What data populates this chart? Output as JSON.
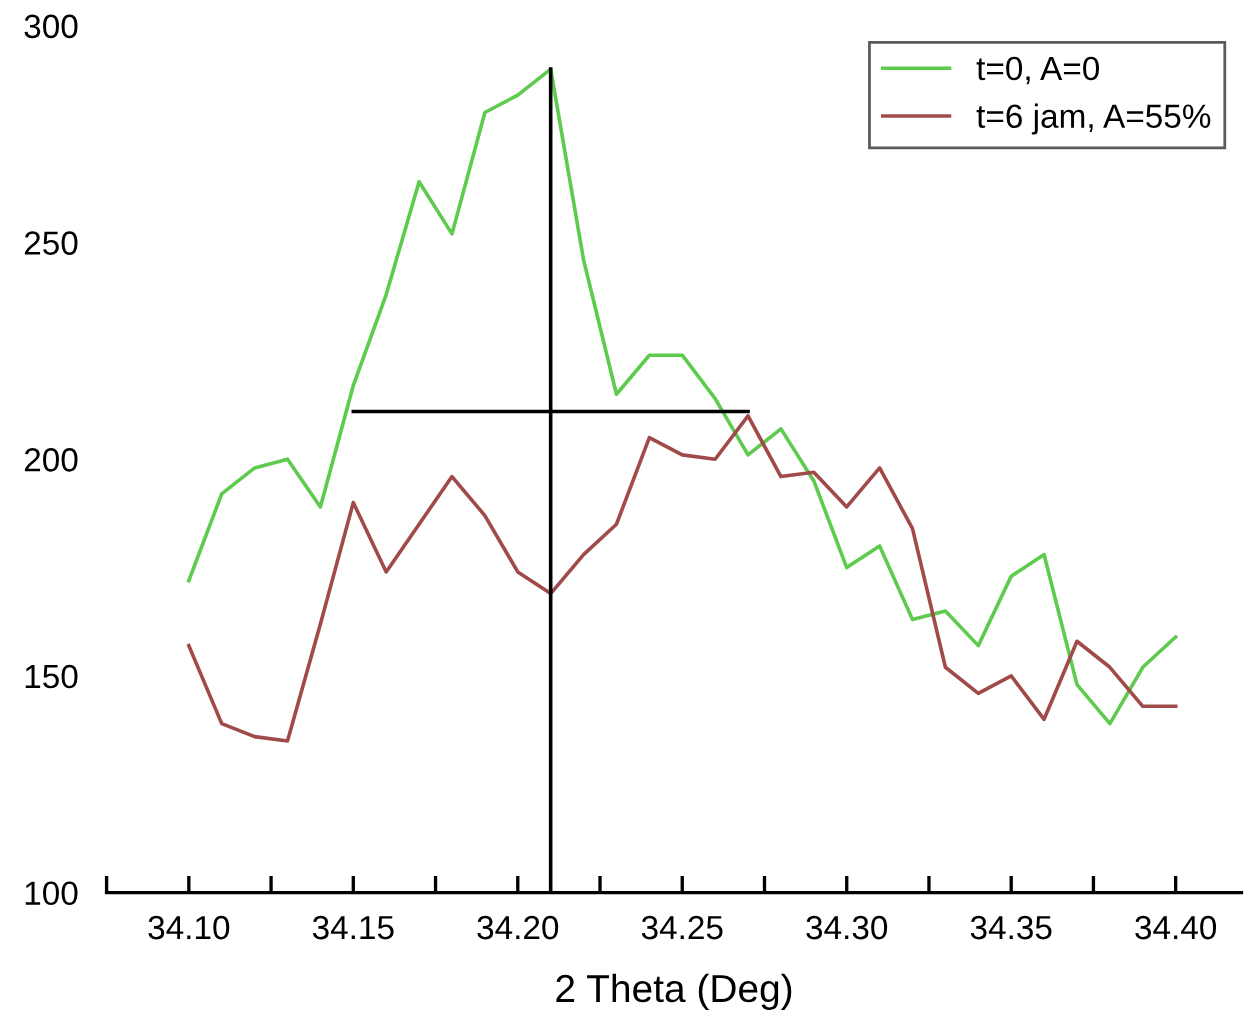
{
  "chart_data": {
    "type": "line",
    "xlabel": "2 Theta (Deg)",
    "xlim": [
      34.075,
      34.42
    ],
    "ylim": [
      100,
      300
    ],
    "xticks": [
      {
        "value": 34.075,
        "label": null
      },
      {
        "value": 34.1,
        "label": "34.10"
      },
      {
        "value": 34.125,
        "label": null
      },
      {
        "value": 34.15,
        "label": "34.15"
      },
      {
        "value": 34.175,
        "label": null
      },
      {
        "value": 34.2,
        "label": "34.20"
      },
      {
        "value": 34.225,
        "label": null
      },
      {
        "value": 34.25,
        "label": "34.25"
      },
      {
        "value": 34.275,
        "label": null
      },
      {
        "value": 34.3,
        "label": "34.30"
      },
      {
        "value": 34.325,
        "label": null
      },
      {
        "value": 34.35,
        "label": "34.35"
      },
      {
        "value": 34.375,
        "label": null
      },
      {
        "value": 34.4,
        "label": "34.40"
      }
    ],
    "yticks": [
      100,
      150,
      200,
      250,
      300
    ],
    "grid": false,
    "legend": "top right",
    "line_style": "solid",
    "marker": "none",
    "x": [
      34.1,
      34.11,
      34.12,
      34.13,
      34.14,
      34.15,
      34.16,
      34.17,
      34.18,
      34.19,
      34.2,
      34.21,
      34.22,
      34.23,
      34.24,
      34.25,
      34.26,
      34.27,
      34.28,
      34.29,
      34.3,
      34.31,
      34.32,
      34.33,
      34.34,
      34.35,
      34.36,
      34.37,
      34.38,
      34.39,
      34.4
    ],
    "series": [
      {
        "name": "t=0, A=0",
        "color": "#5ecb4f",
        "values": [
          172,
          192,
          198,
          200,
          189,
          217,
          238,
          264,
          252,
          280,
          284,
          290,
          246,
          215,
          224,
          224,
          214,
          201,
          207,
          195,
          175,
          180,
          163,
          165,
          157,
          173,
          178,
          148,
          139,
          152,
          159
        ]
      },
      {
        "name": "t=6 jam, A=55%",
        "color": "#a04a4a",
        "values": [
          157,
          139,
          136,
          135,
          162,
          190,
          174,
          185,
          196,
          187,
          174,
          169,
          178,
          185,
          205,
          201,
          200,
          210,
          196,
          197,
          189,
          198,
          184,
          152,
          146,
          150,
          140,
          158,
          152,
          143,
          143
        ]
      },
      {
        "color": "#000000",
        "x": [
          34.21,
          34.21
        ],
        "values": [
          100,
          290
        ]
      },
      {
        "color": "#000000",
        "x": [
          34.15,
          34.27
        ],
        "values": [
          211,
          211
        ]
      }
    ]
  }
}
